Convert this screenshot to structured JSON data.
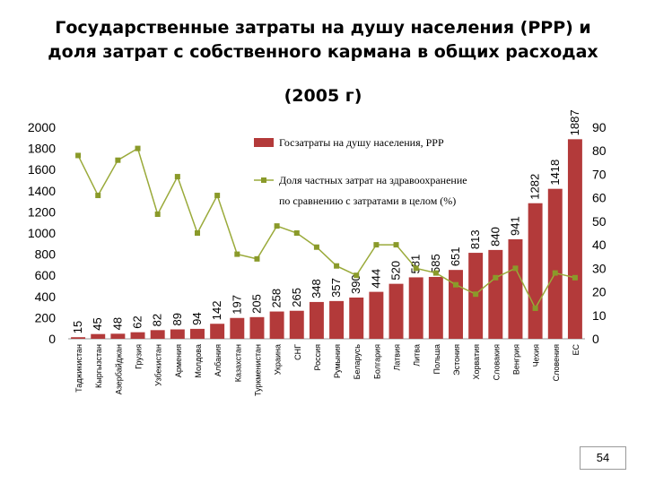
{
  "page": {
    "title_line1": "Государственные затраты на душу населения (PPP) и",
    "title_line2": "доля затрат с собственного кармана в общих расходах",
    "subtitle": "(2005 г)",
    "page_number": "54"
  },
  "colors": {
    "bar": "#b33a3a",
    "line": "#9aaa3a",
    "marker": "#8a9a2a"
  },
  "chart_data": {
    "type": "bar",
    "categories": [
      "Таджикистан",
      "Кыргызстан",
      "Азербайджан",
      "Грузия",
      "Узбекистан",
      "Армения",
      "Молдова",
      "Албания",
      "Казахстан",
      "Туркменистан",
      "Украина",
      "СНГ",
      "Россия",
      "Румыния",
      "Беларусь",
      "Болгария",
      "Латвия",
      "Литва",
      "Польша",
      "Эстония",
      "Хорватия",
      "Словакия",
      "Венгрия",
      "Чехия",
      "Словения",
      "ЕС"
    ],
    "series": [
      {
        "name": "Госзатраты на душу населения, PPP",
        "type": "bar",
        "axis": "left",
        "values": [
          15,
          45,
          48,
          62,
          82,
          89,
          94,
          142,
          197,
          205,
          258,
          265,
          348,
          357,
          390,
          444,
          520,
          581,
          585,
          651,
          813,
          840,
          941,
          1282,
          1418,
          1887
        ]
      },
      {
        "name": "Доля частных затрат на здравоохранение по сравнению с затратами в целом (%)",
        "type": "line",
        "axis": "right",
        "values": [
          78,
          61,
          76,
          81,
          53,
          69,
          45,
          61,
          36,
          34,
          48,
          45,
          39,
          31,
          27,
          40,
          40,
          30,
          28,
          23,
          19,
          26,
          30,
          13,
          28,
          26
        ]
      }
    ],
    "y_left": {
      "min": 0,
      "max": 2000,
      "ticks": [
        0,
        200,
        400,
        600,
        800,
        1000,
        1200,
        1400,
        1600,
        1800,
        2000
      ]
    },
    "y_right": {
      "min": 0,
      "max": 90,
      "ticks": [
        0,
        10,
        20,
        30,
        40,
        50,
        60,
        70,
        80,
        90
      ]
    },
    "legend": {
      "position": "top-center",
      "bar_label": "Госзатраты на душу населения, PPP",
      "line_label_1": "Доля частных затрат на здравоохранение",
      "line_label_2": "по сравнению с затратами в целом (%)"
    },
    "grid": false
  }
}
